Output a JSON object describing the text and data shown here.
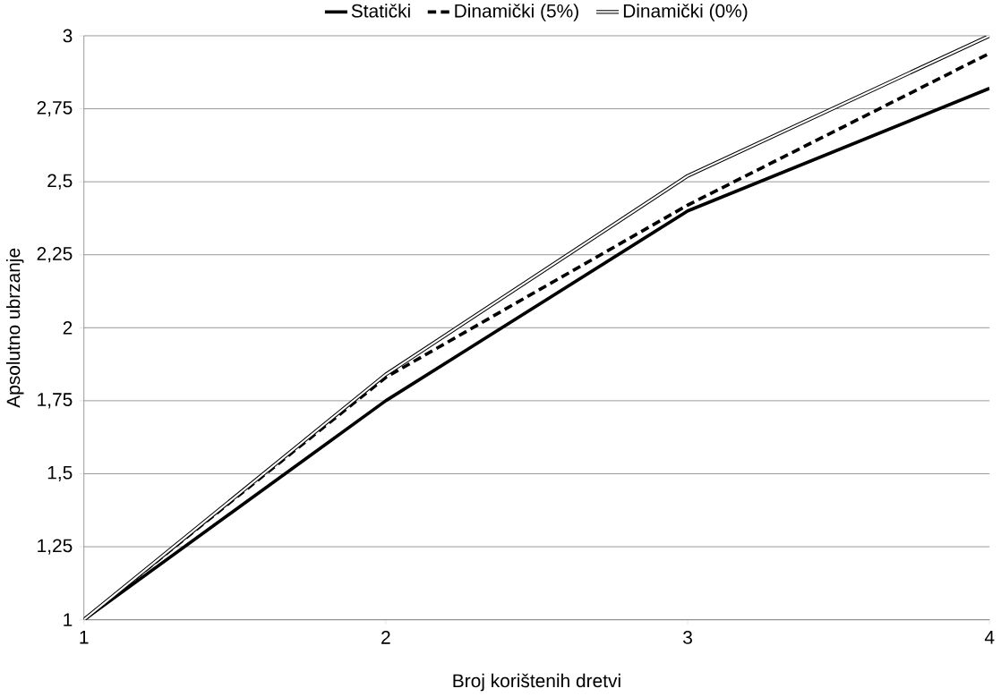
{
  "chart_data": {
    "type": "line",
    "xlabel": "Broj korištenih dretvi",
    "ylabel": "Apsolutno ubrzanje",
    "x": [
      1,
      2,
      3,
      4
    ],
    "series": [
      {
        "name": "Statički",
        "color": "#000000",
        "line_style": "solid",
        "values": [
          1,
          1.75,
          2.4,
          2.82
        ]
      },
      {
        "name": "Dinamički (5%)",
        "color": "#000000",
        "line_style": "dashed",
        "values": [
          1,
          1.83,
          2.42,
          2.94
        ]
      },
      {
        "name": "Dinamički (0%)",
        "color": "#000000",
        "values": [
          1,
          1.84,
          2.52,
          3
        ]
      }
    ],
    "xlim": [
      1,
      4
    ],
    "xticks": [
      1,
      2,
      3,
      4
    ],
    "ylim": [
      1,
      3
    ],
    "yticks": [
      1,
      {
        "value": 1.25,
        "label": "1,25"
      },
      {
        "value": 1.5,
        "label": "1,5"
      },
      {
        "value": 1.75,
        "label": "1,75"
      },
      2,
      {
        "value": 2.25,
        "label": "2,25"
      },
      {
        "value": 2.5,
        "label": "2,5"
      },
      {
        "value": 2.75,
        "label": "2,75"
      },
      3
    ],
    "grid": "y",
    "legend": "top",
    "marker": "none"
  }
}
